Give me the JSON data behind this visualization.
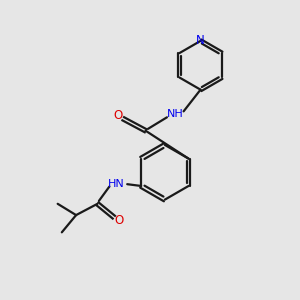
{
  "background_color": "#e6e6e6",
  "bond_color": "#1a1a1a",
  "N_color": "#0000ee",
  "O_color": "#dd0000",
  "line_width": 1.6,
  "dbo": 0.055,
  "figsize": [
    3.0,
    3.0
  ],
  "dpi": 100,
  "xlim": [
    0,
    10
  ],
  "ylim": [
    0,
    10
  ]
}
